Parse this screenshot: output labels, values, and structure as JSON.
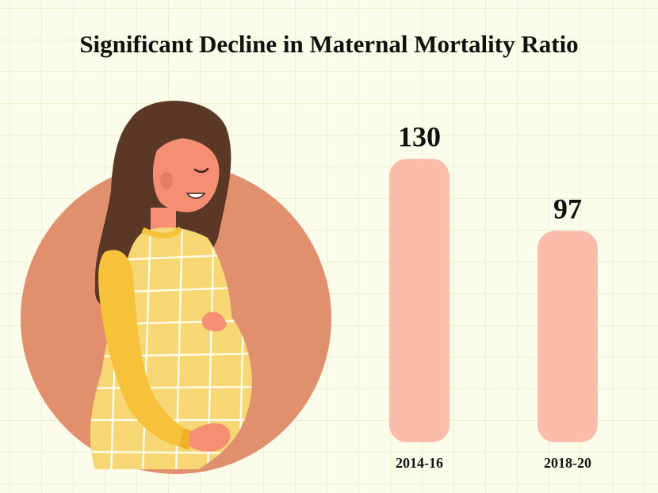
{
  "colors": {
    "background": "#fbfce9",
    "grid": "#eef0cc",
    "bar": "#fbbcab",
    "circle": "#e1906e",
    "hair": "#5b3826",
    "skin": "#f58e73",
    "dress": "#f6d774",
    "sleeve": "#f7c23a"
  },
  "chart_data": {
    "type": "bar",
    "title": "Significant Decline in Maternal Mortality Ratio",
    "categories": [
      "2014-16",
      "2018-20"
    ],
    "values": [
      130,
      97
    ],
    "xlabel": "",
    "ylabel": "",
    "grid": false,
    "legend": "none"
  },
  "illustration": {
    "icon": "pregnant-woman-icon"
  }
}
